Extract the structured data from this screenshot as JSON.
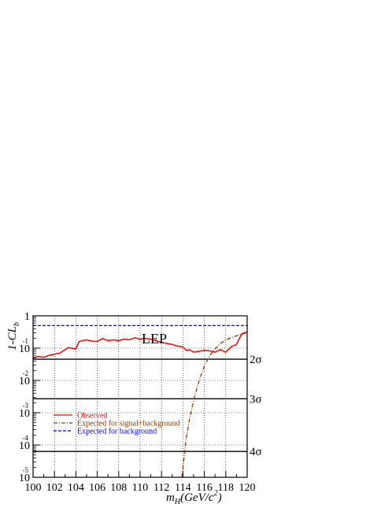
{
  "chart_data": {
    "type": "line",
    "title": "",
    "xlabel": "m",
    "xlabel_sub": "H",
    "xlabel_unit": "(GeV/c",
    "xlabel_unit_sup": "2",
    "xlabel_unit_end": ")",
    "ylabel": "1-CL",
    "ylabel_sub": "b",
    "xlim": [
      100,
      120
    ],
    "ylim": [
      1e-05,
      1
    ],
    "y_scale": "log",
    "grid": true,
    "x_ticks": [
      100,
      102,
      104,
      106,
      108,
      110,
      112,
      114,
      116,
      118,
      120
    ],
    "x_tick_labels": [
      "100",
      "102",
      "104",
      "106",
      "108",
      "110",
      "112",
      "114",
      "116",
      "118",
      "120"
    ],
    "y_ticks": [
      {
        "value": 1,
        "base": "1",
        "exp": ""
      },
      {
        "value": 0.1,
        "base": "10",
        "exp": "-1"
      },
      {
        "value": 0.01,
        "base": "10",
        "exp": "-2"
      },
      {
        "value": 0.001,
        "base": "10",
        "exp": "-3"
      },
      {
        "value": 0.0001,
        "base": "10",
        "exp": "-4"
      },
      {
        "value": 1e-05,
        "base": "10",
        "exp": "-5"
      }
    ],
    "annotation": "LEP",
    "sigma_lines": [
      {
        "label": "2σ",
        "value": 0.0455
      },
      {
        "label": "3σ",
        "value": 0.0027
      },
      {
        "label": "4σ",
        "value": 6.3e-05
      }
    ],
    "series": [
      {
        "name": "Observed",
        "color": "#ff0000",
        "style": "solid",
        "x": [
          100,
          100.5,
          101,
          101.5,
          102,
          102.5,
          103,
          103.3,
          103.6,
          104,
          104.3,
          104.6,
          105,
          105.5,
          106,
          106.5,
          107,
          107.5,
          108,
          108.5,
          109,
          109.5,
          110,
          110.5,
          111,
          111.5,
          112,
          112.5,
          113,
          113.5,
          114,
          114.3,
          114.6,
          115,
          115.5,
          116,
          116.5,
          117,
          117.5,
          118,
          118.5,
          119,
          119.5,
          120
        ],
        "y": [
          0.05,
          0.055,
          0.052,
          0.06,
          0.065,
          0.07,
          0.09,
          0.105,
          0.1,
          0.095,
          0.16,
          0.17,
          0.18,
          0.165,
          0.16,
          0.2,
          0.17,
          0.18,
          0.17,
          0.19,
          0.18,
          0.21,
          0.19,
          0.2,
          0.19,
          0.17,
          0.15,
          0.14,
          0.13,
          0.115,
          0.11,
          0.085,
          0.09,
          0.075,
          0.08,
          0.085,
          0.082,
          0.075,
          0.09,
          0.075,
          0.11,
          0.13,
          0.28,
          0.32
        ]
      },
      {
        "name": "Expected for signal+background",
        "color": "#8b3a00",
        "style": "dashdot",
        "x": [
          113.9,
          114.1,
          114.3,
          114.6,
          115,
          115.5,
          116,
          116.5,
          117,
          117.5,
          118,
          118.5,
          119,
          119.5,
          120
        ],
        "y": [
          1e-05,
          4e-05,
          0.00015,
          0.0006,
          0.0025,
          0.0095,
          0.028,
          0.058,
          0.095,
          0.14,
          0.18,
          0.21,
          0.24,
          0.27,
          0.3
        ]
      },
      {
        "name": "Expected for background",
        "color": "#0000ff",
        "style": "dashed",
        "x": [
          100,
          120
        ],
        "y": [
          0.5,
          0.5
        ]
      }
    ],
    "legend_position": "bottom-left"
  }
}
